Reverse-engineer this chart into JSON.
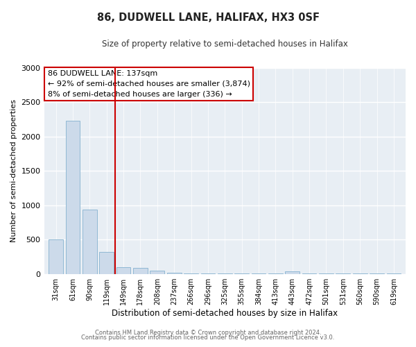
{
  "title": "86, DUDWELL LANE, HALIFAX, HX3 0SF",
  "subtitle": "Size of property relative to semi-detached houses in Halifax",
  "xlabel": "Distribution of semi-detached houses by size in Halifax",
  "ylabel": "Number of semi-detached properties",
  "bar_labels": [
    "31sqm",
    "61sqm",
    "90sqm",
    "119sqm",
    "149sqm",
    "178sqm",
    "208sqm",
    "237sqm",
    "266sqm",
    "296sqm",
    "325sqm",
    "355sqm",
    "384sqm",
    "413sqm",
    "443sqm",
    "472sqm",
    "501sqm",
    "531sqm",
    "560sqm",
    "590sqm",
    "619sqm"
  ],
  "bar_values": [
    500,
    2230,
    940,
    320,
    100,
    90,
    50,
    20,
    5,
    5,
    5,
    5,
    5,
    5,
    40,
    5,
    5,
    5,
    5,
    5,
    5
  ],
  "bar_color": "#ccdaea",
  "bar_edgecolor": "#90b8d4",
  "property_line_label": "86 DUDWELL LANE: 137sqm",
  "annotation_line1": "← 92% of semi-detached houses are smaller (3,874)",
  "annotation_line2": "8% of semi-detached houses are larger (336) →",
  "property_line_color": "#cc0000",
  "property_line_x": 3.5,
  "ylim": [
    0,
    3000
  ],
  "yticks": [
    0,
    500,
    1000,
    1500,
    2000,
    2500,
    3000
  ],
  "footer1": "Contains HM Land Registry data © Crown copyright and database right 2024.",
  "footer2": "Contains public sector information licensed under the Open Government Licence v3.0.",
  "bg_color": "#ffffff",
  "plot_bg_color": "#e8eef4",
  "grid_color": "#ffffff",
  "annotation_fontsize": 8.0,
  "title_fontsize": 10.5,
  "subtitle_fontsize": 8.5
}
